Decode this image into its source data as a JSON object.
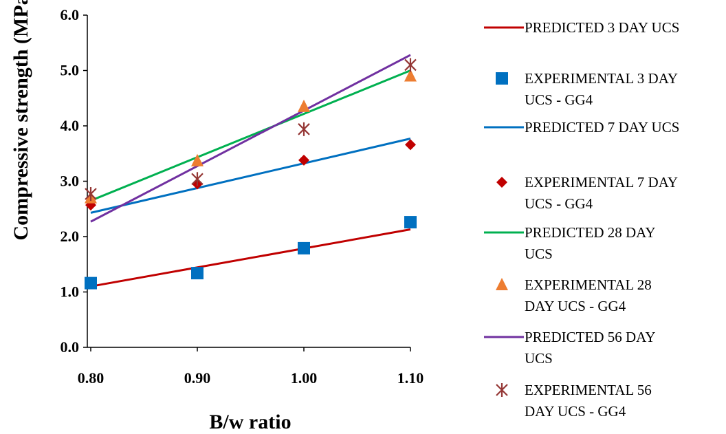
{
  "chart_data": {
    "type": "line",
    "xlabel": "B/w ratio",
    "ylabel": "Compressive strength (MPa)",
    "xlim": [
      0.8,
      1.1
    ],
    "ylim": [
      0,
      6
    ],
    "x_ticks": [
      "0.80",
      "0.90",
      "1.00",
      "1.10"
    ],
    "y_ticks": [
      "0.0",
      "1.0",
      "2.0",
      "3.0",
      "4.0",
      "5.0",
      "6.0"
    ],
    "grid": false,
    "legend_position": "right",
    "series": [
      {
        "name": "PREDICTED 3 DAY UCS",
        "kind": "line",
        "color": "#c00000",
        "x": [
          0.8,
          1.1
        ],
        "y": [
          1.1,
          2.13
        ]
      },
      {
        "name": "EXPERIMENTAL 3 DAY UCS - GG4",
        "kind": "marker",
        "marker": "square",
        "color": "#0070c0",
        "x": [
          0.8,
          0.9,
          1.0,
          1.1
        ],
        "y": [
          1.16,
          1.34,
          1.79,
          2.26
        ]
      },
      {
        "name": "PREDICTED 7 DAY UCS",
        "kind": "line",
        "color": "#0070c0",
        "x": [
          0.8,
          1.1
        ],
        "y": [
          2.43,
          3.77
        ]
      },
      {
        "name": "EXPERIMENTAL 7 DAY UCS - GG4",
        "kind": "marker",
        "marker": "diamond",
        "color": "#c00000",
        "x": [
          0.8,
          0.9,
          1.0,
          1.1
        ],
        "y": [
          2.57,
          2.95,
          3.38,
          3.66
        ]
      },
      {
        "name": "PREDICTED 28 DAY UCS",
        "kind": "line",
        "color": "#00b050",
        "x": [
          0.8,
          1.1
        ],
        "y": [
          2.65,
          5.0
        ]
      },
      {
        "name": "EXPERIMENTAL 28 DAY UCS - GG4",
        "kind": "marker",
        "marker": "triangle",
        "color": "#ed7d31",
        "x": [
          0.8,
          0.9,
          1.0,
          1.1
        ],
        "y": [
          2.7,
          3.37,
          4.35,
          4.9
        ]
      },
      {
        "name": "PREDICTED 56 DAY UCS",
        "kind": "line",
        "color": "#7030a0",
        "x": [
          0.8,
          1.1
        ],
        "y": [
          2.27,
          5.28
        ]
      },
      {
        "name": "EXPERIMENTAL 56 DAY UCS - GG4",
        "kind": "marker",
        "marker": "star",
        "color": "#943634",
        "x": [
          0.8,
          0.9,
          1.0,
          1.1
        ],
        "y": [
          2.77,
          3.04,
          3.94,
          5.1
        ]
      }
    ]
  },
  "legend": {
    "items": [
      {
        "lines": [
          "PREDICTED 3 DAY UCS"
        ]
      },
      {
        "lines": [
          "EXPERIMENTAL 3 DAY",
          "UCS - GG4"
        ]
      },
      {
        "lines": [
          "PREDICTED 7 DAY UCS"
        ]
      },
      {
        "lines": [
          "EXPERIMENTAL 7 DAY",
          "UCS - GG4"
        ]
      },
      {
        "lines": [
          "PREDICTED 28 DAY",
          "UCS"
        ]
      },
      {
        "lines": [
          "EXPERIMENTAL 28",
          "DAY UCS - GG4"
        ]
      },
      {
        "lines": [
          "PREDICTED 56 DAY",
          "UCS"
        ]
      },
      {
        "lines": [
          "EXPERIMENTAL 56",
          "DAY UCS - GG4"
        ]
      }
    ]
  }
}
